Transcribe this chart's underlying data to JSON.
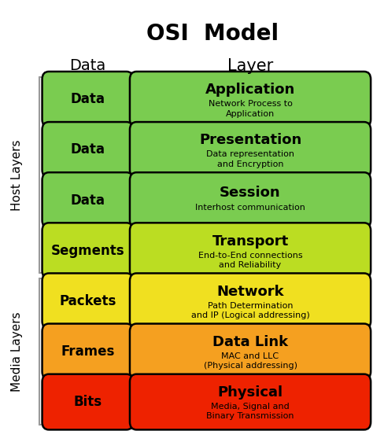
{
  "title": "OSI  Model",
  "col_headers": [
    "Data",
    "Layer"
  ],
  "layers": [
    {
      "data_label": "Data",
      "layer_name": "Application",
      "layer_desc": "Network Process to\nApplication",
      "color": "#7acc50",
      "row": 7
    },
    {
      "data_label": "Data",
      "layer_name": "Presentation",
      "layer_desc": "Data representation\nand Encryption",
      "color": "#7acc50",
      "row": 6
    },
    {
      "data_label": "Data",
      "layer_name": "Session",
      "layer_desc": "Interhost communication",
      "color": "#7acc50",
      "row": 5
    },
    {
      "data_label": "Segments",
      "layer_name": "Transport",
      "layer_desc": "End-to-End connections\nand Reliability",
      "color": "#bbdd22",
      "row": 4
    },
    {
      "data_label": "Packets",
      "layer_name": "Network",
      "layer_desc": "Path Determination\nand IP (Logical addressing)",
      "color": "#f0e020",
      "row": 3
    },
    {
      "data_label": "Frames",
      "layer_name": "Data Link",
      "layer_desc": "MAC and LLC\n(Physical addressing)",
      "color": "#f5a020",
      "row": 2
    },
    {
      "data_label": "Bits",
      "layer_name": "Physical",
      "layer_desc": "Media, Signal and\nBinary Transmission",
      "color": "#ee2200",
      "row": 1
    }
  ],
  "host_layers_rows": [
    4,
    7
  ],
  "media_layers_rows": [
    1,
    3
  ],
  "background_color": "#ffffff",
  "title_fontsize": 20,
  "header_fontsize": 14,
  "data_label_fontsize": 12,
  "layer_name_fontsize": 13,
  "layer_desc_fontsize": 8,
  "side_label_fontsize": 11
}
